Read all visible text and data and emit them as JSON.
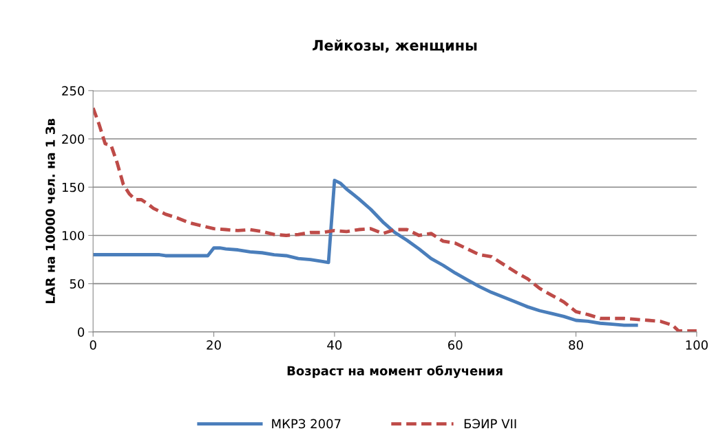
{
  "chart_data": {
    "type": "line",
    "title": "Лейкозы, женщины",
    "xlabel": "Возраст на момент облучения",
    "ylabel": "LAR на 10000 чел. на 1 Зв",
    "xlim": [
      0,
      100
    ],
    "xticks": [
      0,
      20,
      40,
      60,
      80,
      100
    ],
    "ylim": [
      0,
      250
    ],
    "yticks": [
      0,
      50,
      100,
      150,
      200,
      250
    ],
    "grid": "y",
    "legend": "bottom",
    "marker": "none",
    "series": [
      {
        "name": "МКРЗ 2007",
        "color": "#4a7ebb",
        "line_style": "solid",
        "x": [
          0,
          11,
          12,
          19,
          20,
          21,
          22,
          24,
          26,
          28,
          30,
          32,
          34,
          36,
          38,
          39,
          40,
          41,
          42,
          44,
          46,
          48,
          50,
          52,
          54,
          56,
          58,
          60,
          62,
          64,
          66,
          68,
          70,
          72,
          74,
          76,
          78,
          80,
          82,
          84,
          86,
          88,
          90
        ],
        "values": [
          80,
          80,
          79,
          79,
          87,
          87,
          86,
          85,
          83,
          82,
          80,
          79,
          76,
          75,
          73,
          72,
          157,
          154,
          148,
          138,
          127,
          114,
          103,
          95,
          86,
          76,
          69,
          61,
          54,
          47,
          41,
          36,
          31,
          26,
          22,
          19,
          16,
          12,
          11,
          9,
          8,
          7,
          7
        ]
      },
      {
        "name": "БЭИР VII",
        "color": "#be4b48",
        "line_style": "dashed",
        "x": [
          0,
          1,
          2,
          3,
          4,
          5,
          6,
          7,
          8,
          9,
          10,
          11,
          12,
          14,
          16,
          18,
          20,
          22,
          24,
          26,
          28,
          30,
          32,
          34,
          36,
          38,
          40,
          42,
          44,
          46,
          48,
          50,
          52,
          54,
          56,
          58,
          60,
          62,
          64,
          66,
          68,
          70,
          72,
          74,
          76,
          78,
          80,
          82,
          84,
          86,
          88,
          90,
          92,
          94,
          96,
          97,
          100
        ],
        "values": [
          232,
          215,
          195,
          193,
          175,
          153,
          143,
          137,
          137,
          133,
          128,
          125,
          122,
          118,
          113,
          110,
          107,
          106,
          105,
          106,
          104,
          101,
          100,
          101,
          103,
          103,
          105,
          104,
          106,
          107,
          102,
          106,
          106,
          100,
          102,
          94,
          92,
          86,
          80,
          78,
          70,
          62,
          55,
          45,
          38,
          31,
          21,
          18,
          14,
          14,
          14,
          13,
          12,
          11,
          7,
          1,
          1
        ]
      }
    ]
  }
}
